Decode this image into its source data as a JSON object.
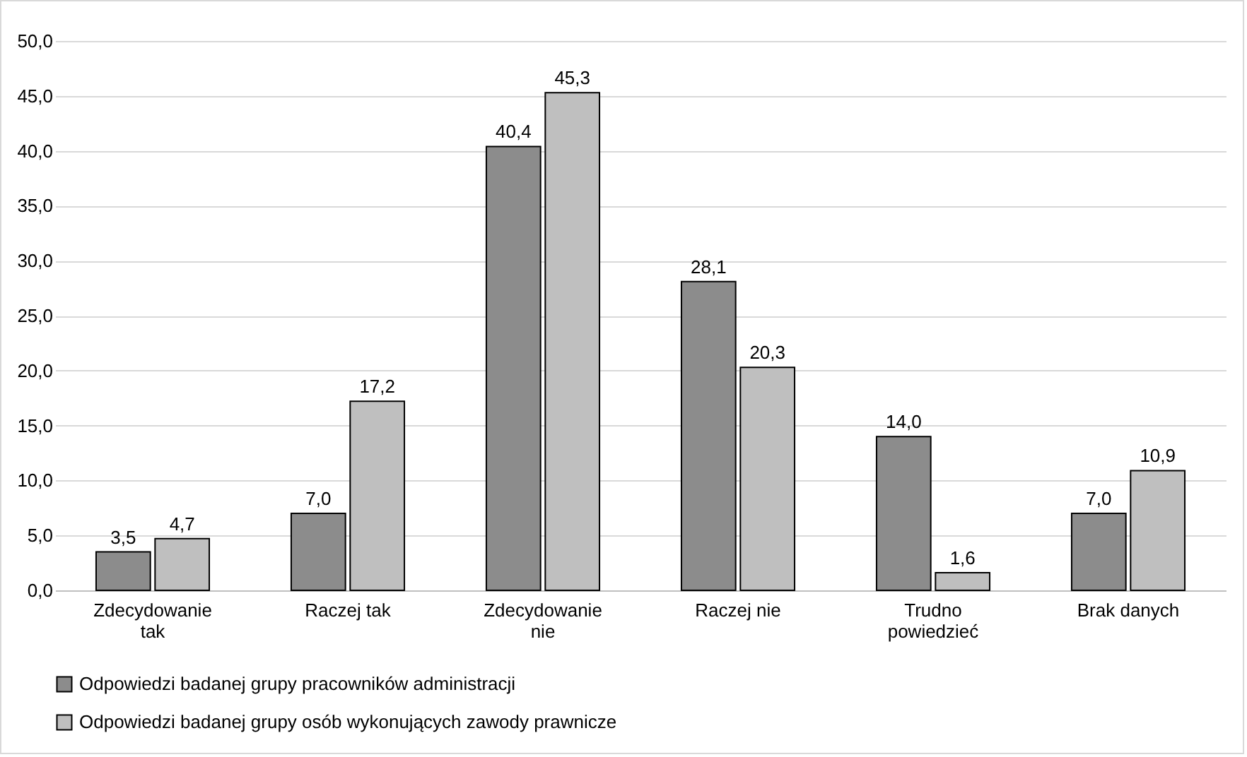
{
  "chart_data": {
    "type": "bar",
    "categories": [
      "Zdecydowanie tak",
      "Raczej tak",
      "Zdecydowanie nie",
      "Raczej nie",
      "Trudno powiedzieć",
      "Brak danych"
    ],
    "series": [
      {
        "name": "Odpowiedzi badanej grupy pracowników administracji",
        "color": "#8c8c8c",
        "values": [
          3.5,
          7.0,
          40.4,
          28.1,
          14.0,
          7.0
        ],
        "value_labels": [
          "3,5",
          "7,0",
          "40,4",
          "28,1",
          "14,0",
          "7,0"
        ]
      },
      {
        "name": "Odpowiedzi badanej grupy osób wykonujących zawody prawnicze",
        "color": "#bfbfbf",
        "values": [
          4.7,
          17.2,
          45.3,
          20.3,
          1.6,
          10.9
        ],
        "value_labels": [
          "4,7",
          "17,2",
          "45,3",
          "20,3",
          "1,6",
          "10,9"
        ]
      }
    ],
    "ylim": [
      0,
      50
    ],
    "yticks": [
      {
        "value": 0,
        "label": "0,0"
      },
      {
        "value": 5,
        "label": "5,0"
      },
      {
        "value": 10,
        "label": "10,0"
      },
      {
        "value": 15,
        "label": "15,0"
      },
      {
        "value": 20,
        "label": "20,0"
      },
      {
        "value": 25,
        "label": "25,0"
      },
      {
        "value": 30,
        "label": "30,0"
      },
      {
        "value": 35,
        "label": "35,0"
      },
      {
        "value": 40,
        "label": "40,0"
      },
      {
        "value": 45,
        "label": "45,0"
      },
      {
        "value": 50,
        "label": "50,0"
      }
    ],
    "grid": "y",
    "legend": "bottom"
  }
}
